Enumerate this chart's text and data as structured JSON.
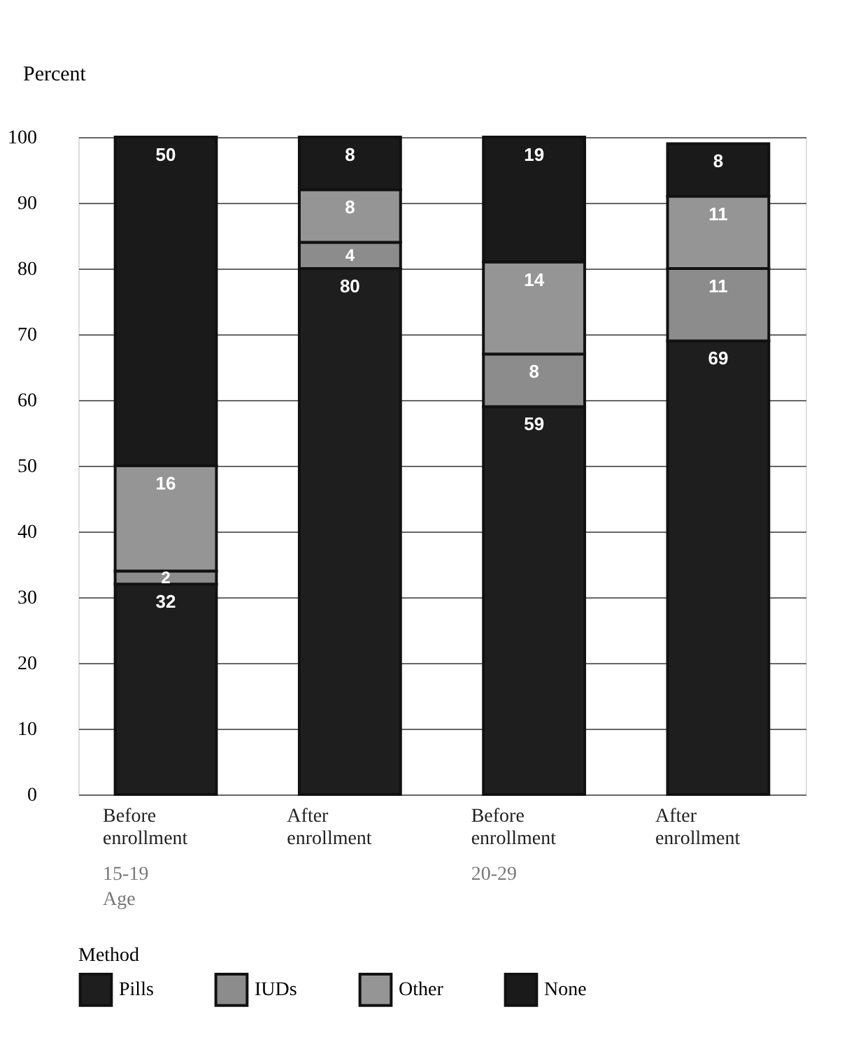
{
  "chart_data": {
    "type": "bar",
    "stacked": true,
    "ylabel": "Percent",
    "legend_title": "Method",
    "legend": "bottom",
    "grid": "y",
    "data_labels": true,
    "categories": [
      "Before enrollment",
      "After enrollment",
      "Before enrollment",
      "After enrollment"
    ],
    "series": [
      {
        "name": "Pills",
        "color": "#1e1e1e",
        "values": [
          32,
          80,
          59,
          69
        ]
      },
      {
        "name": "IUDs",
        "color": "#8c8c8c",
        "values": [
          2,
          4,
          8,
          11
        ]
      },
      {
        "name": "Other",
        "color": "#959595",
        "values": [
          16,
          8,
          14,
          11
        ]
      },
      {
        "name": "None",
        "color": "#1a1a1a",
        "values": [
          50,
          8,
          19,
          8
        ]
      }
    ],
    "ylim": [
      0,
      100
    ],
    "yticks": [
      0,
      10,
      20,
      30,
      40,
      50,
      60,
      70,
      80,
      90,
      100
    ],
    "annotations": [
      "15-19",
      "20-29",
      "Age"
    ]
  }
}
